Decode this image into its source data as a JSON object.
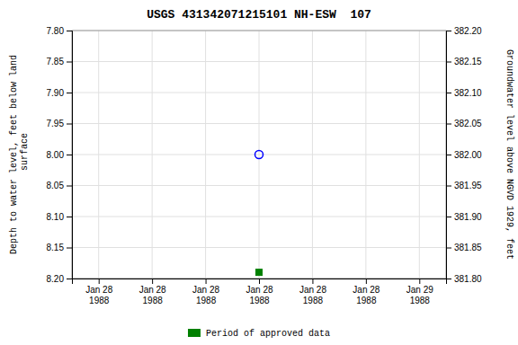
{
  "chart_data": {
    "type": "scatter",
    "title": "USGS 431342071215101 NH-ESW  107",
    "y_label": "Depth to water level, feet below land\n surface",
    "y2_label": "Groundwater level above NGVD 1929, feet",
    "categories": [
      "Jan 28\n1988",
      "Jan 28\n1988",
      "Jan 28\n1988",
      "Jan 28\n1988",
      "Jan 28\n1988",
      "Jan 28\n1988",
      "Jan 29\n1988"
    ],
    "series": [
      {
        "color": "blue",
        "marker": "open-circle",
        "values": [
          null,
          null,
          null,
          8.0,
          null,
          null,
          null
        ]
      },
      {
        "name": "Period of approved data",
        "color": "green",
        "marker": "square",
        "values": [
          null,
          null,
          null,
          8.19,
          null,
          null,
          null
        ]
      }
    ],
    "ylim": [
      8.2,
      7.8
    ],
    "yticks": [
      {
        "value": 7.8,
        "label": "7.80"
      },
      {
        "value": 7.85,
        "label": "7.85"
      },
      {
        "value": 7.9,
        "label": "7.90"
      },
      {
        "value": 7.95,
        "label": "7.95"
      },
      {
        "value": 8.0,
        "label": "8.00"
      },
      {
        "value": 8.05,
        "label": "8.05"
      },
      {
        "value": 8.1,
        "label": "8.10"
      },
      {
        "value": 8.15,
        "label": "8.15"
      },
      {
        "value": 8.2,
        "label": "8.20"
      }
    ],
    "y2lim": [
      381.8,
      382.2
    ],
    "y2ticks": [
      {
        "value": 382.2,
        "label": "382.20"
      },
      {
        "value": 382.15,
        "label": "382.15"
      },
      {
        "value": 382.1,
        "label": "382.10"
      },
      {
        "value": 382.05,
        "label": "382.05"
      },
      {
        "value": 382.0,
        "label": "382.00"
      },
      {
        "value": 381.95,
        "label": "381.95"
      },
      {
        "value": 381.9,
        "label": "381.90"
      },
      {
        "value": 381.85,
        "label": "381.85"
      },
      {
        "value": 381.8,
        "label": "381.80"
      }
    ],
    "grid": true,
    "legend": "bottom"
  }
}
